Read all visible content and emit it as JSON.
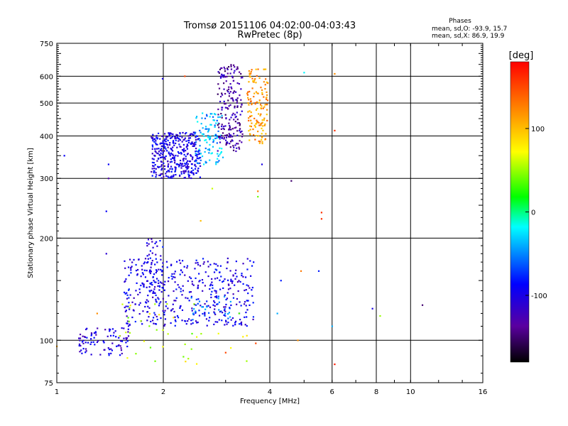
{
  "chart_data": {
    "type": "scatter",
    "title": "Tromsø 20151106 04:02:00-04:03:43",
    "subtitle": "RwPretec (8p)",
    "xlabel": "Frequency [MHz]",
    "ylabel": "Stationary phase Virtual Height [km]",
    "xscale": "log",
    "yscale": "log",
    "xlim": [
      1,
      16
    ],
    "ylim": [
      75,
      750
    ],
    "x_ticks": [
      1,
      2,
      4,
      6,
      8,
      10,
      16
    ],
    "x_tick_labels": [
      "1",
      "2",
      "4",
      "6",
      "8",
      "10",
      "16"
    ],
    "y_ticks": [
      75,
      100,
      200,
      300,
      400,
      500,
      600,
      750
    ],
    "y_tick_labels": [
      "75",
      "100",
      "200",
      "300",
      "400",
      "500",
      "600",
      "750"
    ],
    "grid_x": [
      2,
      4,
      6,
      8,
      10
    ],
    "grid_y": [
      100,
      200,
      300,
      400,
      500,
      600
    ],
    "grid": true,
    "legend": {
      "title": "Phases",
      "lines": [
        "mean, sd,O: -93.9, 15.7",
        "mean, sd,X:  86.9, 19.9"
      ],
      "placement": "top-right"
    },
    "colorbar": {
      "label": "[deg]",
      "min": -180,
      "max": 180,
      "ticks": [
        100,
        0,
        -100
      ],
      "tick_labels": [
        "100",
        "0",
        "-100"
      ],
      "colors": [
        "#000000",
        "#5a00a0",
        "#0000ff",
        "#00ffff",
        "#00ff00",
        "#ffff00",
        "#ff8000",
        "#ff0000"
      ],
      "placement": "right"
    },
    "series": [
      {
        "clusters": [
          {
            "x": [
              1.85,
              2.55
            ],
            "y": [
              300,
              410
            ],
            "phase": -100,
            "n": 380
          },
          {
            "x": [
              2.45,
              2.95
            ],
            "y": [
              330,
              470
            ],
            "phase": -40,
            "n": 110
          },
          {
            "x": [
              2.85,
              3.35
            ],
            "y": [
              360,
              650
            ],
            "phase": -130,
            "n": 200
          },
          {
            "x": [
              3.45,
              3.95
            ],
            "y": [
              380,
              630
            ],
            "phase": 115,
            "n": 140
          },
          {
            "x": [
              1.75,
              2.0
            ],
            "y": [
              140,
              200
            ],
            "phase": -100,
            "n": 60
          },
          {
            "x": [
              1.55,
              3.6
            ],
            "y": [
              110,
              175
            ],
            "phase": -100,
            "n": 420
          },
          {
            "x": [
              1.15,
              1.6
            ],
            "y": [
              90,
              110
            ],
            "phase": -105,
            "n": 90
          },
          {
            "x": [
              2.4,
              3.1
            ],
            "y": [
              115,
              135
            ],
            "phase": -60,
            "n": 40
          },
          {
            "x": [
              1.5,
              3.5
            ],
            "y": [
              85,
              130
            ],
            "phase": 60,
            "n": 40
          }
        ]
      }
    ],
    "outliers": [
      {
        "x": 1.05,
        "y": 350,
        "phase": -90
      },
      {
        "x": 1.4,
        "y": 330,
        "phase": -90
      },
      {
        "x": 1.4,
        "y": 300,
        "phase": -130
      },
      {
        "x": 1.38,
        "y": 240,
        "phase": -90
      },
      {
        "x": 1.38,
        "y": 180,
        "phase": -110
      },
      {
        "x": 1.99,
        "y": 590,
        "phase": -100
      },
      {
        "x": 2.3,
        "y": 600,
        "phase": 150
      },
      {
        "x": 2.75,
        "y": 280,
        "phase": 60
      },
      {
        "x": 2.55,
        "y": 225,
        "phase": 100
      },
      {
        "x": 3.8,
        "y": 330,
        "phase": -100
      },
      {
        "x": 3.7,
        "y": 265,
        "phase": 40
      },
      {
        "x": 3.7,
        "y": 275,
        "phase": 130
      },
      {
        "x": 4.6,
        "y": 295,
        "phase": -150
      },
      {
        "x": 4.3,
        "y": 150,
        "phase": -80
      },
      {
        "x": 4.9,
        "y": 160,
        "phase": 130
      },
      {
        "x": 5.5,
        "y": 160,
        "phase": -80
      },
      {
        "x": 5.6,
        "y": 228,
        "phase": 160
      },
      {
        "x": 5.6,
        "y": 238,
        "phase": 160
      },
      {
        "x": 6.1,
        "y": 415,
        "phase": 160
      },
      {
        "x": 6.1,
        "y": 610,
        "phase": 120
      },
      {
        "x": 6.1,
        "y": 85,
        "phase": 170
      },
      {
        "x": 6.0,
        "y": 110,
        "phase": -40
      },
      {
        "x": 7.8,
        "y": 124,
        "phase": -100
      },
      {
        "x": 8.2,
        "y": 118,
        "phase": 50
      },
      {
        "x": 10.8,
        "y": 127,
        "phase": -150
      },
      {
        "x": 4.2,
        "y": 120,
        "phase": -40
      },
      {
        "x": 4.8,
        "y": 100,
        "phase": 120
      },
      {
        "x": 5.0,
        "y": 615,
        "phase": -20
      },
      {
        "x": 3.65,
        "y": 98,
        "phase": 150
      },
      {
        "x": 3.0,
        "y": 92,
        "phase": 150
      },
      {
        "x": 1.3,
        "y": 120,
        "phase": 120
      },
      {
        "x": 1.0,
        "y": 96,
        "phase": 110
      }
    ]
  }
}
